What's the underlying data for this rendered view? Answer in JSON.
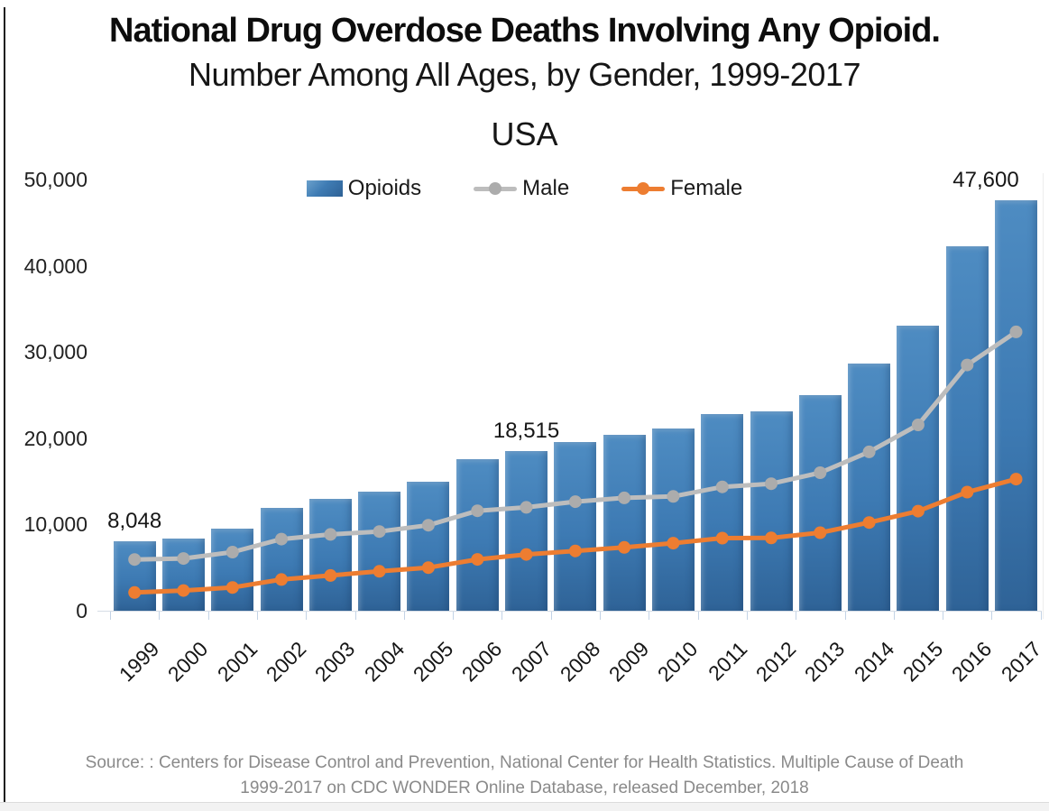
{
  "title": {
    "line1": "National Drug Overdose Deaths Involving Any Opioid.",
    "line2": "Number Among All Ages, by Gender, 1999-2017",
    "line3": "USA"
  },
  "source": {
    "line1": "Source: : Centers for Disease Control and Prevention, National Center for Health Statistics. Multiple Cause of Death",
    "line2": "1999-2017 on CDC WONDER Online Database, released December, 2018"
  },
  "chart_data": {
    "type": "bar",
    "subtype": "bar-with-line-overlay",
    "categories": [
      "1999",
      "2000",
      "2001",
      "2002",
      "2003",
      "2004",
      "2005",
      "2006",
      "2007",
      "2008",
      "2009",
      "2010",
      "2011",
      "2012",
      "2013",
      "2014",
      "2015",
      "2016",
      "2017"
    ],
    "series": [
      {
        "name": "Opioids",
        "type": "bar",
        "color": "#3E7BB6",
        "values": [
          8048,
          8407,
          9496,
          11920,
          12940,
          13756,
          14918,
          17545,
          18515,
          19582,
          20422,
          21089,
          22784,
          23166,
          25052,
          28647,
          33091,
          42249,
          47600
        ]
      },
      {
        "name": "Male",
        "type": "line",
        "color": "#BDBDBD",
        "marker_color": "#ACACAC",
        "values": [
          5937,
          6061,
          6800,
          8302,
          8853,
          9183,
          9921,
          11593,
          11992,
          12646,
          13084,
          13258,
          14360,
          14728,
          16008,
          18420,
          21547,
          28498,
          32337
        ]
      },
      {
        "name": "Female",
        "type": "line",
        "color": "#ED7D31",
        "marker_color": "#ED7D31",
        "values": [
          2111,
          2346,
          2696,
          3618,
          4087,
          4573,
          4997,
          5952,
          6523,
          6936,
          7338,
          7831,
          8424,
          8438,
          9044,
          10227,
          11544,
          13751,
          15263
        ]
      }
    ],
    "annotations": [
      {
        "category": "1999",
        "text": "8,048"
      },
      {
        "category": "2007",
        "text": "18,515"
      },
      {
        "category": "2017",
        "text": "47,600"
      }
    ],
    "ylim": [
      0,
      50000
    ],
    "yticks": [
      "0",
      "10,000",
      "20,000",
      "30,000",
      "40,000",
      "50,000"
    ],
    "ytick_values": [
      0,
      10000,
      20000,
      30000,
      40000,
      50000
    ],
    "xlabel": "",
    "ylabel": "",
    "grid": false,
    "legend_position": "top-center"
  }
}
